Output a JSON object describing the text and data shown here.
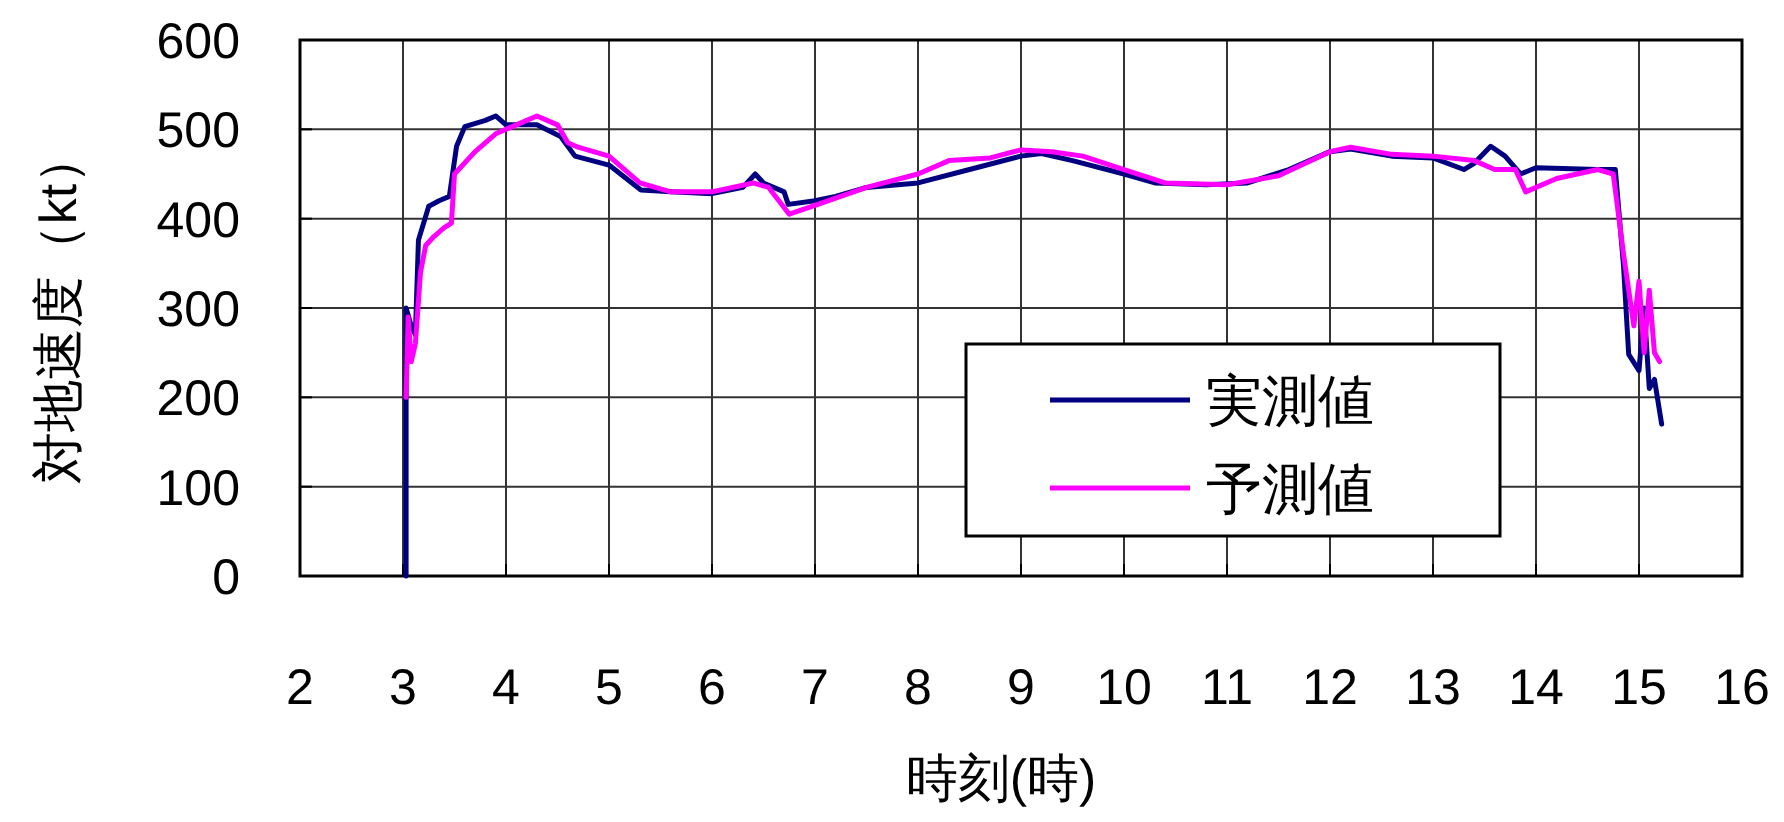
{
  "chart_data": {
    "type": "line",
    "xlabel": "時刻(時)",
    "ylabel": "対地速度（kt）",
    "xlim": [
      2,
      16
    ],
    "xticks": [
      2,
      3,
      4,
      5,
      6,
      7,
      8,
      9,
      10,
      11,
      12,
      13,
      14,
      15,
      16
    ],
    "ylim": [
      0,
      600
    ],
    "yticks": [
      0,
      100,
      200,
      300,
      400,
      500,
      600
    ],
    "grid": true,
    "legend": "bottom right",
    "marker": "none",
    "line_style": "solid",
    "series": [
      {
        "name": "実測値",
        "color": "#000080",
        "x": [
          3.03,
          3.03,
          3.08,
          3.12,
          3.15,
          3.25,
          3.35,
          3.45,
          3.52,
          3.6,
          3.8,
          3.9,
          4.0,
          4.3,
          4.53,
          4.67,
          5.0,
          5.31,
          5.6,
          6.0,
          6.3,
          6.42,
          6.5,
          6.7,
          6.74,
          7.0,
          7.2,
          7.5,
          8.0,
          8.5,
          9.0,
          9.2,
          9.5,
          10.0,
          10.3,
          10.8,
          11.2,
          11.6,
          12.0,
          12.2,
          12.6,
          13.0,
          13.3,
          13.4,
          13.56,
          13.7,
          13.85,
          14.0,
          14.6,
          14.77,
          14.85,
          14.9,
          15.0,
          15.05,
          15.1,
          15.15,
          15.22
        ],
        "values": [
          0,
          300,
          280,
          270,
          376,
          414,
          420,
          425,
          481,
          503,
          510,
          515,
          505,
          505,
          492,
          470,
          460,
          432,
          430,
          428,
          435,
          450,
          440,
          430,
          416,
          420,
          425,
          435,
          440,
          455,
          470,
          473,
          465,
          450,
          440,
          438,
          440,
          455,
          475,
          478,
          470,
          468,
          455,
          462,
          481,
          470,
          450,
          457,
          455,
          455,
          347,
          248,
          230,
          300,
          210,
          220,
          170
        ]
      },
      {
        "name": "予測値",
        "color": "#ff00ff",
        "x": [
          3.03,
          3.05,
          3.08,
          3.12,
          3.17,
          3.22,
          3.3,
          3.4,
          3.47,
          3.5,
          3.7,
          3.9,
          4.1,
          4.3,
          4.5,
          4.6,
          4.7,
          5.0,
          5.3,
          5.6,
          6.0,
          6.4,
          6.55,
          6.75,
          7.0,
          7.5,
          8.0,
          8.3,
          8.7,
          9.0,
          9.3,
          9.6,
          10.0,
          10.4,
          11.0,
          11.5,
          12.0,
          12.2,
          12.6,
          13.0,
          13.4,
          13.6,
          13.8,
          13.9,
          14.2,
          14.6,
          14.75,
          14.85,
          14.9,
          14.95,
          15.0,
          15.05,
          15.1,
          15.15,
          15.2
        ],
        "values": [
          200,
          290,
          240,
          260,
          340,
          370,
          380,
          390,
          395,
          450,
          475,
          495,
          505,
          515,
          505,
          485,
          480,
          470,
          440,
          430,
          430,
          440,
          435,
          405,
          415,
          435,
          450,
          465,
          468,
          477,
          475,
          470,
          455,
          440,
          438,
          448,
          475,
          480,
          472,
          470,
          465,
          455,
          455,
          430,
          445,
          455,
          450,
          360,
          320,
          280,
          330,
          250,
          320,
          250,
          240
        ]
      }
    ]
  }
}
